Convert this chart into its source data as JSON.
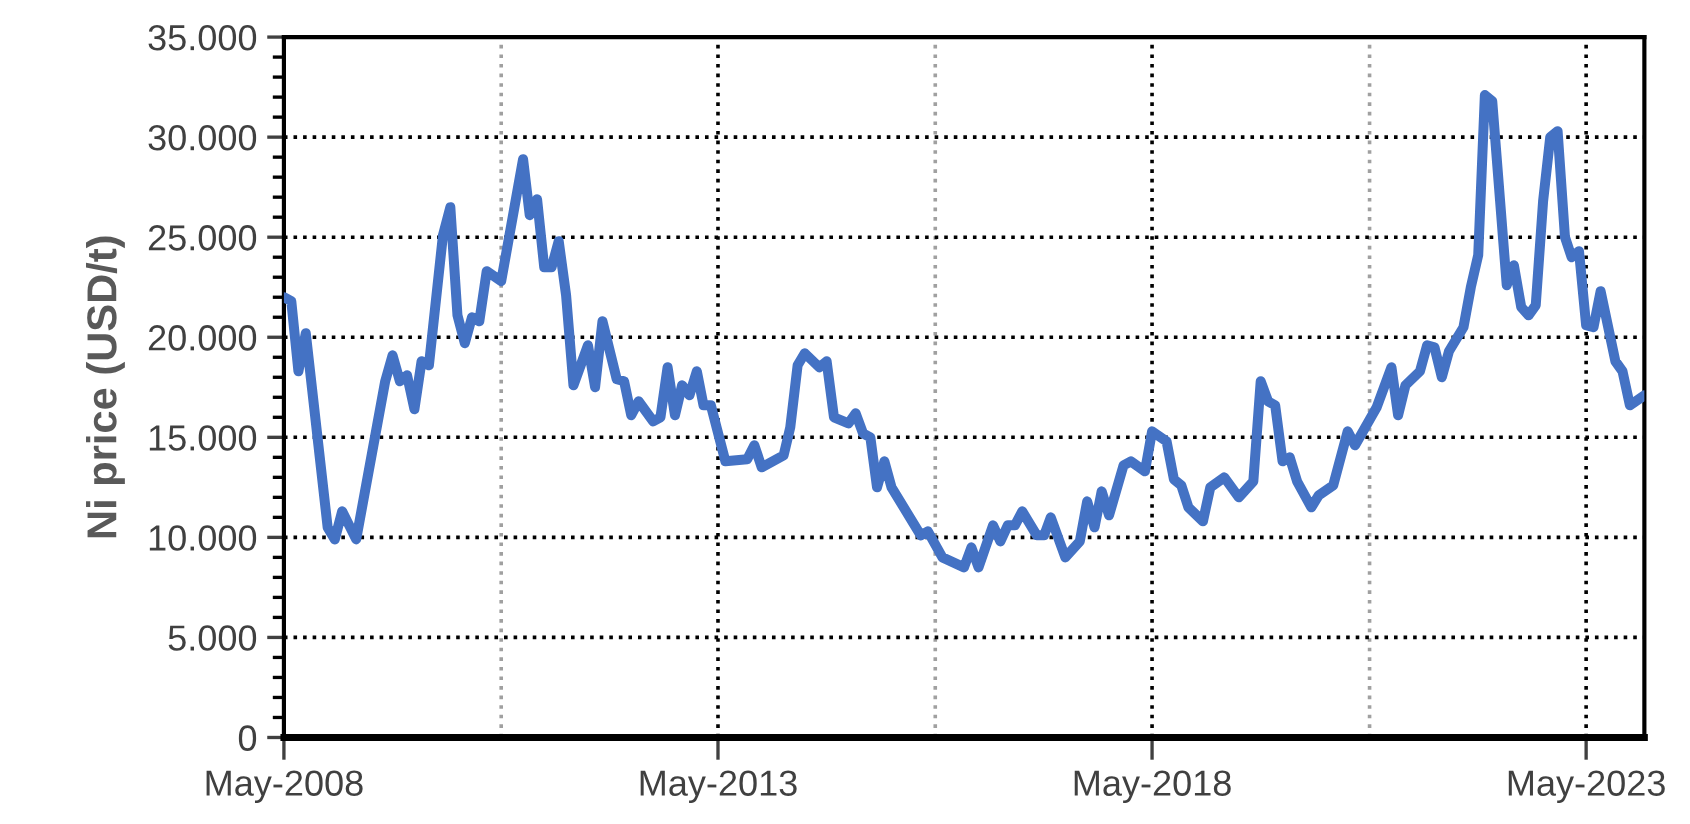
{
  "chart_data": {
    "type": "line",
    "ylabel": "Ni price (USD/t)",
    "x": [
      "2008-05",
      "2008-06",
      "2008-07",
      "2008-08",
      "2008-11",
      "2008-12",
      "2009-01",
      "2009-03",
      "2009-07",
      "2009-08",
      "2009-09",
      "2009-10",
      "2009-11",
      "2009-12",
      "2010-01",
      "2010-03",
      "2010-04",
      "2010-05",
      "2010-06",
      "2010-07",
      "2010-08",
      "2010-09",
      "2010-11",
      "2011-02",
      "2011-03",
      "2011-04",
      "2011-05",
      "2011-06",
      "2011-07",
      "2011-08",
      "2011-09",
      "2011-11",
      "2011-12",
      "2012-01",
      "2012-03",
      "2012-04",
      "2012-05",
      "2012-06",
      "2012-08",
      "2012-09",
      "2012-10",
      "2012-11",
      "2012-12",
      "2013-01",
      "2013-02",
      "2013-03",
      "2013-04",
      "2013-06",
      "2013-09",
      "2013-10",
      "2013-11",
      "2014-02",
      "2014-03",
      "2014-04",
      "2014-05",
      "2014-07",
      "2014-08",
      "2014-09",
      "2014-11",
      "2014-12",
      "2015-01",
      "2015-02",
      "2015-03",
      "2015-04",
      "2015-05",
      "2015-09",
      "2015-10",
      "2015-12",
      "2016-03",
      "2016-04",
      "2016-05",
      "2016-07",
      "2016-08",
      "2016-09",
      "2016-10",
      "2016-11",
      "2017-01",
      "2017-02",
      "2017-03",
      "2017-05",
      "2017-07",
      "2017-08",
      "2017-09",
      "2017-10",
      "2017-11",
      "2018-01",
      "2018-02",
      "2018-04",
      "2018-05",
      "2018-07",
      "2018-08",
      "2018-09",
      "2018-10",
      "2018-12",
      "2019-01",
      "2019-03",
      "2019-05",
      "2019-07",
      "2019-08",
      "2019-09",
      "2019-10",
      "2019-11",
      "2019-12",
      "2020-01",
      "2020-03",
      "2020-04",
      "2020-06",
      "2020-08",
      "2020-09",
      "2020-12",
      "2021-02",
      "2021-03",
      "2021-04",
      "2021-06",
      "2021-07",
      "2021-08",
      "2021-09",
      "2021-10",
      "2021-12",
      "2022-01",
      "2022-02",
      "2022-03",
      "2022-04",
      "2022-06",
      "2022-07",
      "2022-08",
      "2022-09",
      "2022-10",
      "2022-11",
      "2022-12",
      "2023-01",
      "2023-02",
      "2023-03",
      "2023-04",
      "2023-05",
      "2023-06",
      "2023-07",
      "2023-09",
      "2023-10",
      "2023-11",
      "2024-01"
    ],
    "series": [
      {
        "color": "#4472c4",
        "values": [
          22000,
          21800,
          18300,
          20200,
          10500,
          9900,
          11300,
          9900,
          17800,
          19100,
          17800,
          18100,
          16400,
          18800,
          18600,
          25100,
          26500,
          21100,
          19700,
          21000,
          20800,
          23300,
          22800,
          28900,
          26100,
          26900,
          23500,
          23500,
          24800,
          22100,
          17600,
          19600,
          17500,
          20800,
          17900,
          17800,
          16100,
          16800,
          15800,
          16000,
          18500,
          16100,
          17600,
          17100,
          18300,
          16600,
          16600,
          13800,
          13900,
          14600,
          13500,
          14100,
          15500,
          18600,
          19200,
          18500,
          18800,
          16000,
          15700,
          16200,
          15200,
          15000,
          12500,
          13800,
          12500,
          10100,
          10300,
          9000,
          8500,
          9500,
          8500,
          10600,
          9800,
          10600,
          10600,
          11300,
          10100,
          10100,
          11000,
          9000,
          9800,
          11800,
          10500,
          12300,
          11100,
          13600,
          13800,
          13300,
          15300,
          14800,
          12900,
          12600,
          11500,
          10800,
          12500,
          13000,
          12000,
          12800,
          17800,
          16800,
          16600,
          13800,
          14000,
          12800,
          11500,
          12100,
          12600,
          15300,
          14600,
          16500,
          18500,
          16100,
          17600,
          18300,
          19600,
          19500,
          18000,
          19300,
          20500,
          22500,
          24100,
          32100,
          31800,
          22600,
          23600,
          21500,
          21100,
          21600,
          26800,
          30000,
          30300,
          25000,
          24000,
          24300,
          20600,
          20500,
          22300,
          18800,
          18300,
          16600,
          17100
        ]
      }
    ],
    "xlim": [
      "2008-05",
      "2024-01"
    ],
    "xticks": [
      {
        "value": "2008-05",
        "label": "May-2008"
      },
      {
        "value": "2010-11",
        "label": null
      },
      {
        "value": "2013-05",
        "label": "May-2013"
      },
      {
        "value": "2015-11",
        "label": null
      },
      {
        "value": "2018-05",
        "label": "May-2018"
      },
      {
        "value": "2020-11",
        "label": null
      },
      {
        "value": "2023-05",
        "label": "May-2023"
      }
    ],
    "ylim": [
      0,
      35000
    ],
    "yticks": [
      0,
      {
        "value": 5000,
        "label": "5.000"
      },
      {
        "value": 10000,
        "label": "10.000"
      },
      {
        "value": 15000,
        "label": "15.000"
      },
      {
        "value": 20000,
        "label": "20.000"
      },
      {
        "value": 25000,
        "label": "25.000"
      },
      {
        "value": 30000,
        "label": "30.000"
      },
      {
        "value": 35000,
        "label": "35.000"
      }
    ],
    "grid": true,
    "marker": "none",
    "line_style": "solid",
    "legend": false
  }
}
